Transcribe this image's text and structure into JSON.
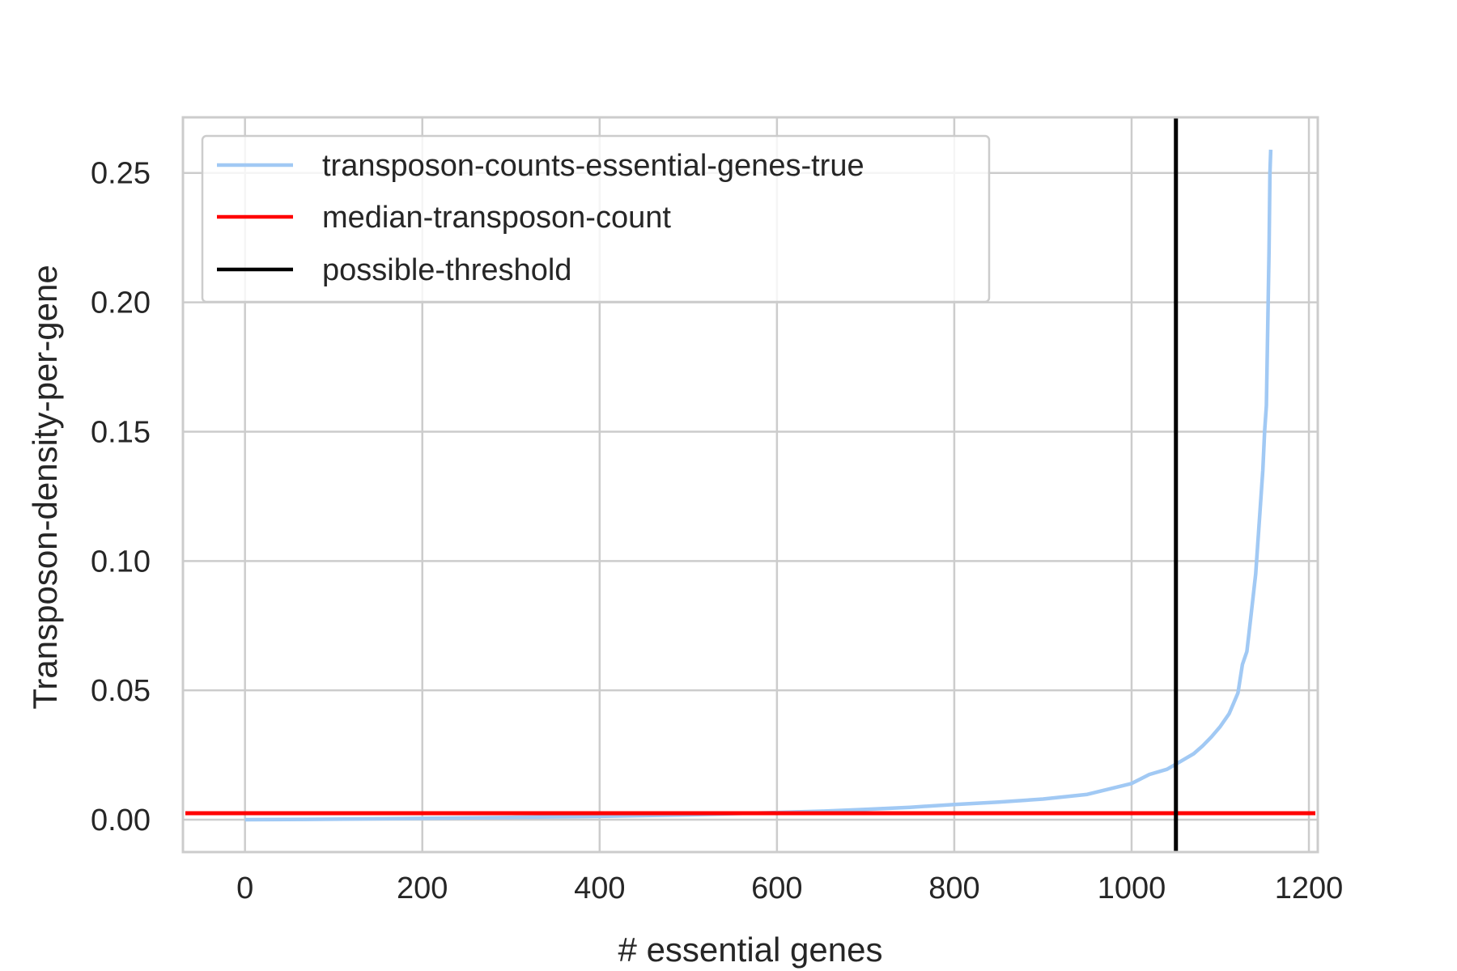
{
  "chart_data": {
    "type": "line",
    "xlabel": "# essential genes",
    "ylabel": "Transposon-density-per-gene",
    "xlim": [
      -70,
      1210
    ],
    "ylim": [
      -0.0125,
      0.2715
    ],
    "xticks": [
      0,
      200,
      400,
      600,
      800,
      1000,
      1200
    ],
    "yticks": [
      0.0,
      0.05,
      0.1,
      0.15,
      0.2,
      0.25
    ],
    "xtick_labels": [
      "0",
      "200",
      "400",
      "600",
      "800",
      "1000",
      "1200"
    ],
    "ytick_labels": [
      "0.00",
      "0.05",
      "0.10",
      "0.15",
      "0.20",
      "0.25"
    ],
    "grid": true,
    "legend_position": "top-left",
    "colors": {
      "series": "#a1c9f4",
      "median": "#ff0000",
      "threshold": "#000000",
      "grid": "#cccccc",
      "text": "#262626"
    },
    "series": [
      {
        "name": "transposon-counts-essential-genes-true",
        "x": [
          0,
          100,
          200,
          300,
          400,
          500,
          600,
          650,
          700,
          750,
          800,
          850,
          900,
          950,
          1000,
          1020,
          1040,
          1050,
          1060,
          1070,
          1080,
          1090,
          1100,
          1110,
          1120,
          1125,
          1130,
          1135,
          1140,
          1145,
          1148,
          1150,
          1152,
          1153,
          1155,
          1156,
          1157
        ],
        "y": [
          0.0,
          0.0002,
          0.0005,
          0.0009,
          0.0013,
          0.0019,
          0.0028,
          0.0033,
          0.004,
          0.0048,
          0.0059,
          0.0068,
          0.008,
          0.0098,
          0.014,
          0.0175,
          0.0195,
          0.0215,
          0.0235,
          0.0255,
          0.0285,
          0.032,
          0.036,
          0.041,
          0.049,
          0.06,
          0.065,
          0.08,
          0.095,
          0.12,
          0.135,
          0.15,
          0.16,
          0.18,
          0.22,
          0.25,
          0.259
        ]
      },
      {
        "name": "median-transposon-count",
        "value": 0.0025
      },
      {
        "name": "possible-threshold",
        "value": 1050
      }
    ]
  }
}
